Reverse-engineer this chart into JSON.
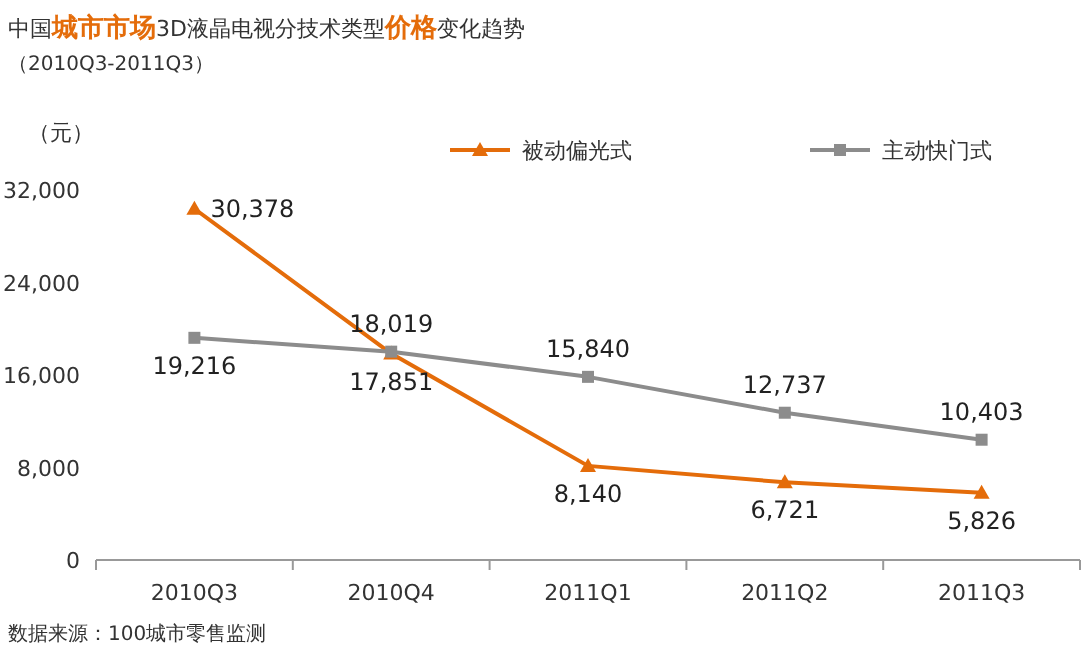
{
  "chart_data": {
    "type": "line",
    "title": "中国**城市市场**3D液晶电视分技术类型**价格**变化趋势",
    "subtitle": "（2010Q3-2011Q3）",
    "ylabel": "（元）",
    "categories": [
      "2010Q3",
      "2010Q4",
      "2011Q1",
      "2011Q2",
      "2011Q3"
    ],
    "series": [
      {
        "name": "被动偏光式",
        "color": "#e46c0a",
        "marker": "triangle",
        "values": [
          30378,
          17851,
          8140,
          6721,
          5826
        ],
        "value_labels": [
          "30,378",
          "17,851",
          "8,140",
          "6,721",
          "5,826"
        ]
      },
      {
        "name": "主动快门式",
        "color": "#8c8c8c",
        "marker": "square",
        "values": [
          19216,
          18019,
          15840,
          12737,
          10403
        ],
        "value_labels": [
          "19,216",
          "18,019",
          "15,840",
          "12,737",
          "10,403"
        ]
      }
    ],
    "ylim": [
      0,
      32000
    ],
    "yticks": [
      {
        "value": 0,
        "label": "0"
      },
      {
        "value": 8000,
        "label": "8,000"
      },
      {
        "value": 16000,
        "label": "16,000"
      },
      {
        "value": 24000,
        "label": "24,000"
      },
      {
        "value": 32000,
        "label": "32,000"
      }
    ],
    "legend": "top",
    "grid": false,
    "annotations": [
      "数据来源：100城市零售监测"
    ]
  }
}
